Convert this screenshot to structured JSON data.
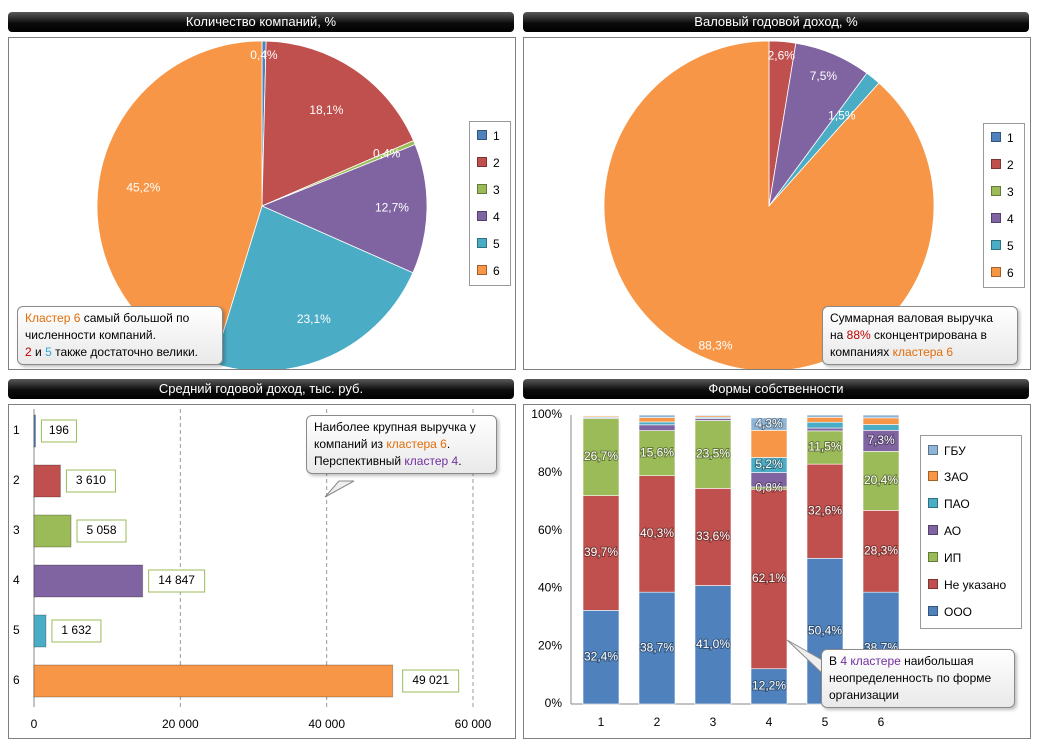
{
  "colors": {
    "c1": "#4f81bd",
    "c2": "#c0504d",
    "c3": "#9bbb59",
    "c4": "#8064a2",
    "c5": "#4bacc6",
    "c6": "#f79646",
    "callout_orange": "#e36c09",
    "callout_red": "#c00000",
    "callout_blue": "#31a5d8",
    "callout_purple": "#7030a0"
  },
  "panels": {
    "companies": {
      "title": "Количество компаний, %",
      "legend": [
        "1",
        "2",
        "3",
        "4",
        "5",
        "6"
      ],
      "callout": {
        "p1a": "Кластер 6",
        "p1b": " самый большой по",
        "p2": "численности компаний.",
        "p3a": "2",
        "p3b": " и ",
        "p3c": "5",
        "p3d": " также достаточно велики."
      }
    },
    "revenue": {
      "title": "Валовый годовой доход, %",
      "legend": [
        "1",
        "2",
        "3",
        "4",
        "5",
        "6"
      ],
      "callout": {
        "l1": "Суммарная валовая выручка",
        "l2a": "на ",
        "l2b": "88%",
        "l2c": " сконцентрирована в",
        "l3a": "компаниях ",
        "l3b": "кластера 6"
      }
    },
    "avg": {
      "title": "Средний годовой доход, тыс. руб.",
      "callout": {
        "l1": "Наиболее крупная выручка у",
        "l2a": "компаний из ",
        "l2b": "кластера 6",
        "l2c": ".",
        "l3a": "Перспективный ",
        "l3b": "кластер 4",
        "l3c": "."
      }
    },
    "ownership": {
      "title": "Формы собственности",
      "legend": [
        "ГБУ",
        "ЗАО",
        "ПАО",
        "АО",
        "ИП",
        "Не указано",
        "ООО"
      ],
      "callout": {
        "l1a": "В ",
        "l1b": "4 кластере",
        "l1c": " наибольшая",
        "l2": "неопределенность по форме",
        "l3": "организации"
      }
    }
  },
  "chart_data": [
    {
      "type": "pie",
      "title": "Количество компаний, %",
      "labels": [
        "1",
        "2",
        "3",
        "4",
        "5",
        "6"
      ],
      "values": [
        0.4,
        18.1,
        0.4,
        12.7,
        23.1,
        45.2
      ],
      "value_labels": [
        "0,4%",
        "18,1%",
        "0,4%",
        "12,7%",
        "23,1%",
        "45,2%"
      ],
      "legend": "right"
    },
    {
      "type": "pie",
      "title": "Валовый годовой доход, %",
      "labels": [
        "1",
        "2",
        "3",
        "4",
        "5",
        "6"
      ],
      "values": [
        0.0,
        2.6,
        0.0,
        7.5,
        1.5,
        88.3
      ],
      "value_labels": [
        "",
        "2,6%",
        "",
        "7,5%",
        "1,5%",
        "88,3%"
      ],
      "legend": "right"
    },
    {
      "type": "bar",
      "orientation": "horizontal",
      "title": "Средний годовой доход, тыс. руб.",
      "categories": [
        "1",
        "2",
        "3",
        "4",
        "5",
        "6"
      ],
      "values": [
        196,
        3610,
        5058,
        14847,
        1632,
        49021
      ],
      "value_labels": [
        "196",
        "3 610",
        "5 058",
        "14 847",
        "1 632",
        "49 021"
      ],
      "xlim": [
        0,
        60000
      ],
      "xticks": [
        0,
        20000,
        40000,
        60000
      ],
      "xtick_labels": [
        "0",
        "20 000",
        "40 000",
        "60 000"
      ],
      "grid": true
    },
    {
      "type": "bar",
      "stacked": "percent",
      "title": "Формы собственности",
      "categories": [
        "1",
        "2",
        "3",
        "4",
        "5",
        "6"
      ],
      "ylim": [
        0,
        100
      ],
      "yticks": [
        "0%",
        "20%",
        "40%",
        "60%",
        "80%",
        "100%"
      ],
      "legend": "right",
      "series": [
        {
          "name": "ООО",
          "values": [
            32.4,
            38.7,
            41.0,
            12.2,
            50.4,
            38.7
          ],
          "labels": [
            "32,4%",
            "38,7%",
            "41,0%",
            "12,2%",
            "50,4%",
            "38,7%"
          ]
        },
        {
          "name": "Не указано",
          "values": [
            39.7,
            40.3,
            33.6,
            62.1,
            32.6,
            28.3
          ],
          "labels": [
            "39,7%",
            "40,3%",
            "33,6%",
            "62,1%",
            "32,6%",
            "28,3%"
          ]
        },
        {
          "name": "ИП",
          "values": [
            26.7,
            15.6,
            23.5,
            0.8,
            11.5,
            20.4
          ],
          "labels": [
            "26,7%",
            "15,6%",
            "23,5%",
            "0,8%",
            "11,5%",
            "20,4%"
          ]
        },
        {
          "name": "АО",
          "values": [
            0.3,
            2.0,
            0.7,
            5.0,
            1.0,
            7.3
          ],
          "labels": [
            "",
            "",
            "",
            "",
            "",
            "7,3%"
          ]
        },
        {
          "name": "ПАО",
          "values": [
            0.3,
            1.0,
            0.4,
            5.2,
            2.0,
            2.0
          ],
          "labels": [
            "",
            "",
            "",
            "5,2%",
            "",
            ""
          ]
        },
        {
          "name": "ЗАО",
          "values": [
            0.4,
            1.5,
            0.5,
            9.4,
            1.7,
            2.3
          ],
          "labels": [
            "",
            "",
            "",
            "",
            "",
            ""
          ]
        },
        {
          "name": "ГБУ",
          "values": [
            0.2,
            0.9,
            0.3,
            4.3,
            0.8,
            1.0
          ],
          "labels": [
            "",
            "",
            "",
            "4,3%",
            "",
            ""
          ]
        }
      ]
    }
  ]
}
